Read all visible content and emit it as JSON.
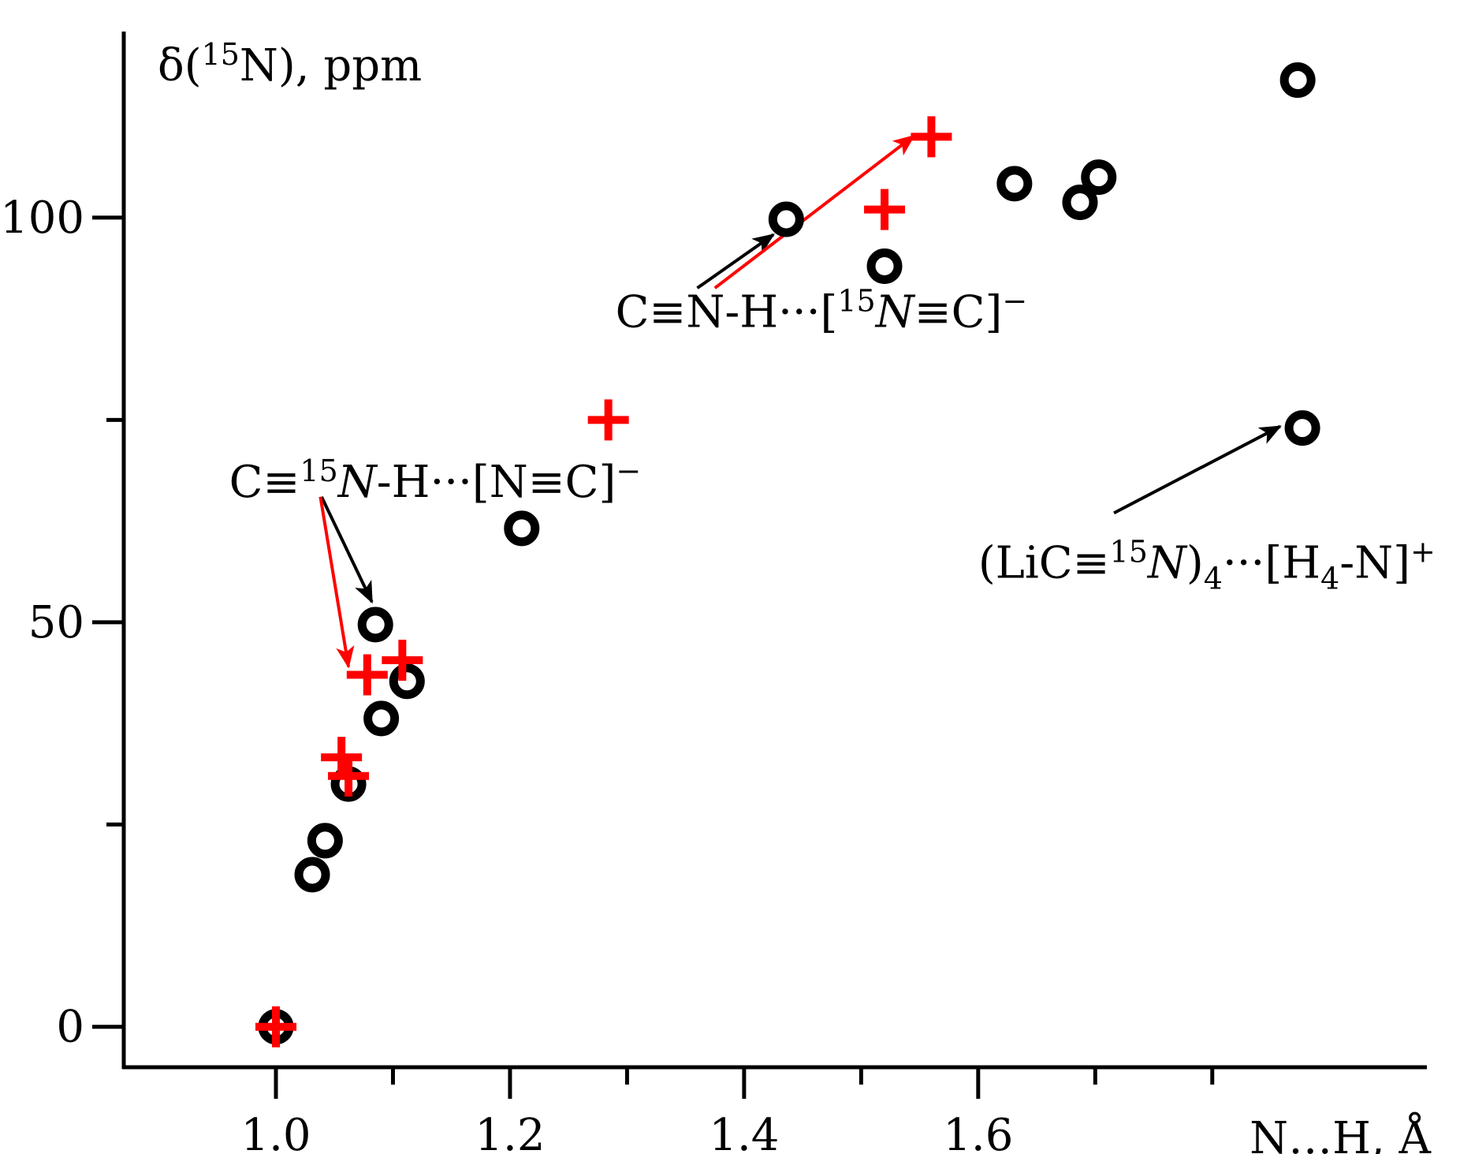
{
  "chart_data": {
    "type": "scatter",
    "title": "",
    "xlabel": "N…H, Å",
    "ylabel": "δ(15N), ppm",
    "xlim": [
      0.87,
      1.98
    ],
    "ylim": [
      -5,
      123
    ],
    "grid": false,
    "legend": "none",
    "x_ticks": [
      {
        "value": 1.0,
        "label": "1.0"
      },
      {
        "value": 1.2,
        "label": "1.2"
      },
      {
        "value": 1.4,
        "label": "1.4"
      },
      {
        "value": 1.6,
        "label": "1.6"
      }
    ],
    "x_minor_ticks": [
      1.1,
      1.3,
      1.5,
      1.7,
      1.8
    ],
    "y_ticks": [
      {
        "value": 0,
        "label": "0"
      },
      {
        "value": 50,
        "label": "50"
      },
      {
        "value": 100,
        "label": "100"
      }
    ],
    "y_minor_ticks": [
      25,
      75
    ],
    "series": [
      {
        "marker": "circle",
        "color": "#000000",
        "points": [
          [
            1.0,
            0.0
          ],
          [
            1.031,
            18.8
          ],
          [
            1.042,
            23.0
          ],
          [
            1.062,
            30.0
          ],
          [
            1.085,
            49.7
          ],
          [
            1.09,
            38.1
          ],
          [
            1.112,
            42.7
          ],
          [
            1.21,
            61.6
          ],
          [
            1.436,
            99.8
          ],
          [
            1.52,
            94.0
          ],
          [
            1.631,
            104.2
          ],
          [
            1.687,
            101.9
          ],
          [
            1.703,
            105.0
          ],
          [
            1.873,
            117.0
          ],
          [
            1.877,
            74.0
          ]
        ]
      },
      {
        "marker": "cross",
        "color": "#ff0000",
        "points": [
          [
            1.0,
            0.0
          ],
          [
            1.056,
            33.3
          ],
          [
            1.062,
            31.0
          ],
          [
            1.078,
            43.5
          ],
          [
            1.108,
            45.3
          ],
          [
            1.284,
            75.0
          ],
          [
            1.52,
            101.0
          ],
          [
            1.56,
            110.0
          ]
        ]
      }
    ],
    "annotations": [
      {
        "label": "hcn-shifted-15n-label",
        "parts": [
          [
            "C≡N-H···[",
            "n"
          ],
          [
            "15",
            "sup"
          ],
          [
            "N",
            "i"
          ],
          [
            "≡C]",
            "n"
          ],
          [
            "−",
            "sup"
          ]
        ],
        "text_at": [
          1.29,
          86.5
        ],
        "arrows": [
          {
            "color": "#000000",
            "from": [
              1.36,
              91.3
            ],
            "to": [
              1.425,
              97.9
            ]
          },
          {
            "color": "#ff0000",
            "from": [
              1.375,
              91.3
            ],
            "to": [
              1.545,
              110.1
            ]
          }
        ]
      },
      {
        "label": "hcn-15n-label",
        "parts": [
          [
            "C≡",
            "n"
          ],
          [
            "15",
            "sup"
          ],
          [
            "N",
            "i"
          ],
          [
            "-H···[N≡C]",
            "n"
          ],
          [
            "−",
            "sup"
          ]
        ],
        "text_at": [
          0.96,
          65.5
        ],
        "arrows": [
          {
            "color": "#000000",
            "from": [
              1.039,
              65.5
            ],
            "to": [
              1.082,
              52.5
            ]
          },
          {
            "color": "#ff0000",
            "from": [
              1.038,
              65.5
            ],
            "to": [
              1.062,
              44.5
            ]
          }
        ]
      },
      {
        "label": "lic15n-tetramer-label",
        "parts": [
          [
            "(LiC≡",
            "n"
          ],
          [
            "15",
            "sup"
          ],
          [
            "N",
            "i"
          ],
          [
            ")",
            "n"
          ],
          [
            "4",
            "sub"
          ],
          [
            "···[H",
            "n"
          ],
          [
            "4",
            "sub"
          ],
          [
            "-N]",
            "n"
          ],
          [
            "+",
            "sup"
          ]
        ],
        "text_at": [
          1.6,
          55.5
        ],
        "arrows": [
          {
            "color": "#000000",
            "from": [
              1.716,
              63.5
            ],
            "to": [
              1.858,
              74.2
            ]
          }
        ]
      }
    ]
  }
}
